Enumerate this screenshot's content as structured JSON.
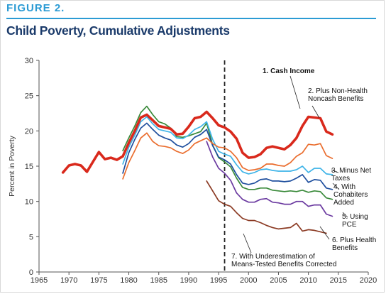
{
  "figure_label": "FIGURE 2.",
  "title": "Child Poverty, Cumulative Adjustments",
  "colors": {
    "accent": "#2b9bd4",
    "title": "#1a3a6a",
    "axis": "#555555"
  },
  "chart_data": {
    "type": "line",
    "title": "Child Poverty, Cumulative Adjustments",
    "xlabel": "",
    "ylabel": "Percent in Poverty",
    "xlim": [
      1965,
      2020
    ],
    "ylim": [
      0,
      30
    ],
    "xticks": [
      "1965",
      "1970",
      "1975",
      "1980",
      "1985",
      "1990",
      "1995",
      "2000",
      "2005",
      "2010",
      "2015",
      "2020"
    ],
    "yticks": [
      "0",
      "5",
      "10",
      "15",
      "20",
      "25",
      "30"
    ],
    "grid": false,
    "vline_x": 1996,
    "series": [
      {
        "name": "1. Cash Income",
        "color": "#d9291c",
        "width": 3.6,
        "points": [
          [
            1969,
            14.1
          ],
          [
            1970,
            15.1
          ],
          [
            1971,
            15.3
          ],
          [
            1972,
            15.1
          ],
          [
            1973,
            14.2
          ],
          [
            1974,
            15.6
          ],
          [
            1975,
            17.0
          ],
          [
            1976,
            16.0
          ],
          [
            1977,
            16.2
          ],
          [
            1978,
            15.9
          ],
          [
            1979,
            16.4
          ],
          [
            1980,
            18.3
          ],
          [
            1981,
            20.0
          ],
          [
            1982,
            21.9
          ],
          [
            1983,
            22.3
          ],
          [
            1984,
            21.5
          ],
          [
            1985,
            20.7
          ],
          [
            1986,
            20.5
          ],
          [
            1987,
            20.3
          ],
          [
            1988,
            19.5
          ],
          [
            1989,
            19.6
          ],
          [
            1990,
            20.6
          ],
          [
            1991,
            21.8
          ],
          [
            1992,
            22.0
          ],
          [
            1993,
            22.7
          ],
          [
            1994,
            21.8
          ],
          [
            1995,
            20.8
          ],
          [
            1996,
            20.5
          ],
          [
            1997,
            19.9
          ],
          [
            1998,
            18.9
          ],
          [
            1999,
            16.9
          ],
          [
            2000,
            16.2
          ],
          [
            2001,
            16.3
          ],
          [
            2002,
            16.7
          ],
          [
            2003,
            17.6
          ],
          [
            2004,
            17.8
          ],
          [
            2005,
            17.6
          ],
          [
            2006,
            17.4
          ],
          [
            2007,
            18.0
          ],
          [
            2008,
            19.0
          ],
          [
            2009,
            20.7
          ],
          [
            2010,
            22.0
          ],
          [
            2011,
            21.9
          ],
          [
            2012,
            21.8
          ],
          [
            2013,
            19.9
          ],
          [
            2014,
            19.5
          ]
        ]
      },
      {
        "name": "2. Plus Non-Health Noncash Benefits",
        "color": "#ea6d2e",
        "width": 1.7,
        "points": [
          [
            1979,
            13.2
          ],
          [
            1980,
            15.5
          ],
          [
            1981,
            17.2
          ],
          [
            1982,
            19.0
          ],
          [
            1983,
            19.7
          ],
          [
            1984,
            18.5
          ],
          [
            1985,
            17.9
          ],
          [
            1986,
            17.8
          ],
          [
            1987,
            17.6
          ],
          [
            1988,
            17.1
          ],
          [
            1989,
            16.8
          ],
          [
            1990,
            17.3
          ],
          [
            1991,
            18.2
          ],
          [
            1992,
            18.6
          ],
          [
            1993,
            19.0
          ],
          [
            1994,
            18.2
          ],
          [
            1995,
            17.7
          ],
          [
            1996,
            17.6
          ],
          [
            1997,
            17.1
          ],
          [
            1998,
            16.2
          ],
          [
            1999,
            14.8
          ],
          [
            2000,
            14.4
          ],
          [
            2001,
            14.5
          ],
          [
            2002,
            14.7
          ],
          [
            2003,
            15.3
          ],
          [
            2004,
            15.3
          ],
          [
            2005,
            15.1
          ],
          [
            2006,
            15.0
          ],
          [
            2007,
            15.5
          ],
          [
            2008,
            16.4
          ],
          [
            2009,
            16.9
          ],
          [
            2010,
            18.1
          ],
          [
            2011,
            18.0
          ],
          [
            2012,
            18.2
          ],
          [
            2013,
            16.5
          ],
          [
            2014,
            16.1
          ]
        ]
      },
      {
        "name": "3. Minus Net Taxes",
        "color": "#3fb4e8",
        "width": 1.7,
        "points": [
          [
            1979,
            15.3
          ],
          [
            1980,
            17.7
          ],
          [
            1981,
            19.4
          ],
          [
            1982,
            21.3
          ],
          [
            1983,
            22.0
          ],
          [
            1984,
            21.0
          ],
          [
            1985,
            20.2
          ],
          [
            1986,
            20.0
          ],
          [
            1987,
            19.8
          ],
          [
            1988,
            19.0
          ],
          [
            1989,
            18.9
          ],
          [
            1990,
            19.4
          ],
          [
            1991,
            20.2
          ],
          [
            1992,
            20.6
          ],
          [
            1993,
            21.3
          ],
          [
            1994,
            18.8
          ],
          [
            1995,
            17.1
          ],
          [
            1996,
            16.7
          ],
          [
            1997,
            16.4
          ],
          [
            1998,
            15.2
          ],
          [
            1999,
            14.2
          ],
          [
            2000,
            13.9
          ],
          [
            2001,
            14.1
          ],
          [
            2002,
            14.5
          ],
          [
            2003,
            14.6
          ],
          [
            2004,
            14.4
          ],
          [
            2005,
            14.3
          ],
          [
            2006,
            14.3
          ],
          [
            2007,
            14.3
          ],
          [
            2008,
            14.5
          ],
          [
            2009,
            15.0
          ],
          [
            2010,
            14.1
          ],
          [
            2011,
            14.7
          ],
          [
            2012,
            14.7
          ],
          [
            2013,
            13.9
          ],
          [
            2014,
            13.8
          ]
        ]
      },
      {
        "name": "4. With Cohabiters Added",
        "color": "#1f4f9e",
        "width": 1.7,
        "points": [
          [
            1979,
            14.0
          ],
          [
            1980,
            16.9
          ],
          [
            1981,
            18.8
          ],
          [
            1982,
            20.4
          ],
          [
            1983,
            21.1
          ],
          [
            1984,
            20.2
          ],
          [
            1985,
            19.4
          ],
          [
            1986,
            19.0
          ],
          [
            1987,
            18.7
          ],
          [
            1988,
            18.0
          ],
          [
            1989,
            17.7
          ],
          [
            1990,
            18.2
          ],
          [
            1991,
            19.1
          ],
          [
            1992,
            19.5
          ],
          [
            1993,
            20.2
          ],
          [
            1994,
            17.9
          ],
          [
            1995,
            16.3
          ],
          [
            1996,
            15.9
          ],
          [
            1997,
            15.3
          ],
          [
            1998,
            13.8
          ],
          [
            1999,
            12.6
          ],
          [
            2000,
            12.4
          ],
          [
            2001,
            12.6
          ],
          [
            2002,
            13.1
          ],
          [
            2003,
            13.2
          ],
          [
            2004,
            12.9
          ],
          [
            2005,
            12.9
          ],
          [
            2006,
            12.8
          ],
          [
            2007,
            12.9
          ],
          [
            2008,
            13.3
          ],
          [
            2009,
            13.8
          ],
          [
            2010,
            12.7
          ],
          [
            2011,
            13.1
          ],
          [
            2012,
            13.0
          ],
          [
            2013,
            11.9
          ],
          [
            2014,
            11.7
          ]
        ]
      },
      {
        "name": "5. Using PCE",
        "color": "#6b3aa0",
        "width": 1.7,
        "points": [
          [
            1993,
            18.5
          ],
          [
            1994,
            16.3
          ],
          [
            1995,
            14.7
          ],
          [
            1996,
            14.0
          ],
          [
            1997,
            13.0
          ],
          [
            1998,
            11.2
          ],
          [
            1999,
            10.3
          ],
          [
            2000,
            9.9
          ],
          [
            2001,
            9.9
          ],
          [
            2002,
            10.3
          ],
          [
            2003,
            10.4
          ],
          [
            2004,
            9.9
          ],
          [
            2005,
            9.8
          ],
          [
            2006,
            9.6
          ],
          [
            2007,
            9.6
          ],
          [
            2008,
            10.0
          ],
          [
            2009,
            10.0
          ],
          [
            2010,
            9.3
          ],
          [
            2011,
            9.5
          ],
          [
            2012,
            9.5
          ],
          [
            2013,
            8.2
          ],
          [
            2014,
            7.9
          ]
        ]
      },
      {
        "name": "6. Plus Health Benefits",
        "color": "#3a8a3a",
        "width": 1.7,
        "points": [
          [
            1979,
            17.2
          ],
          [
            1980,
            19.0
          ],
          [
            1981,
            20.7
          ],
          [
            1982,
            22.6
          ],
          [
            1983,
            23.5
          ],
          [
            1984,
            22.3
          ],
          [
            1985,
            21.3
          ],
          [
            1986,
            21.0
          ],
          [
            1987,
            20.4
          ],
          [
            1988,
            19.2
          ],
          [
            1989,
            19.1
          ],
          [
            1990,
            19.3
          ],
          [
            1991,
            19.6
          ],
          [
            1992,
            19.9
          ],
          [
            1993,
            21.1
          ],
          [
            1994,
            18.0
          ],
          [
            1995,
            16.2
          ],
          [
            1996,
            15.6
          ],
          [
            1997,
            14.9
          ],
          [
            1998,
            13.3
          ],
          [
            1999,
            12.0
          ],
          [
            2000,
            11.7
          ],
          [
            2001,
            11.7
          ],
          [
            2002,
            11.9
          ],
          [
            2003,
            11.9
          ],
          [
            2004,
            11.6
          ],
          [
            2005,
            11.5
          ],
          [
            2006,
            11.4
          ],
          [
            2007,
            11.5
          ],
          [
            2008,
            11.4
          ],
          [
            2009,
            11.6
          ],
          [
            2010,
            11.3
          ],
          [
            2011,
            11.5
          ],
          [
            2012,
            11.4
          ],
          [
            2013,
            10.5
          ],
          [
            2014,
            10.3
          ]
        ]
      },
      {
        "name": "7. With Underestimation of Means-Tested Benefits Corrected",
        "color": "#8b3a23",
        "width": 1.7,
        "points": [
          [
            1993,
            12.9
          ],
          [
            1994,
            11.5
          ],
          [
            1995,
            10.1
          ],
          [
            1996,
            9.6
          ],
          [
            1997,
            9.3
          ],
          [
            1998,
            8.4
          ],
          [
            1999,
            7.6
          ],
          [
            2000,
            7.3
          ],
          [
            2001,
            7.3
          ],
          [
            2002,
            7.0
          ],
          [
            2003,
            6.6
          ],
          [
            2004,
            6.3
          ],
          [
            2005,
            6.1
          ],
          [
            2006,
            6.2
          ],
          [
            2007,
            6.3
          ],
          [
            2008,
            6.9
          ],
          [
            2009,
            5.8
          ],
          [
            2010,
            6.0
          ],
          [
            2011,
            5.9
          ],
          [
            2012,
            5.7
          ],
          [
            2013,
            5.5
          ]
        ]
      }
    ],
    "annotations": [
      {
        "lines": [
          "1. Cash Income"
        ],
        "series": "1. Cash Income",
        "bold": true
      },
      {
        "lines": [
          "2. Plus Non-Health",
          "Noncash Benefits"
        ],
        "series": "2. Plus Non-Health Noncash Benefits"
      },
      {
        "lines": [
          "3. Minus Net",
          "Taxes"
        ],
        "series": "3. Minus Net Taxes"
      },
      {
        "lines": [
          "4. With",
          "Cohabiters",
          "Added"
        ],
        "series": "4. With Cohabiters Added"
      },
      {
        "lines": [
          "5. Using",
          "PCE"
        ],
        "series": "5. Using PCE"
      },
      {
        "lines": [
          "6. Plus Health",
          "Benefits"
        ],
        "series": "6. Plus Health Benefits"
      },
      {
        "lines": [
          "7. With Underestimation of",
          "Means-Tested Benefits Corrected"
        ],
        "series": "7. With Underestimation of Means-Tested Benefits Corrected"
      }
    ]
  }
}
